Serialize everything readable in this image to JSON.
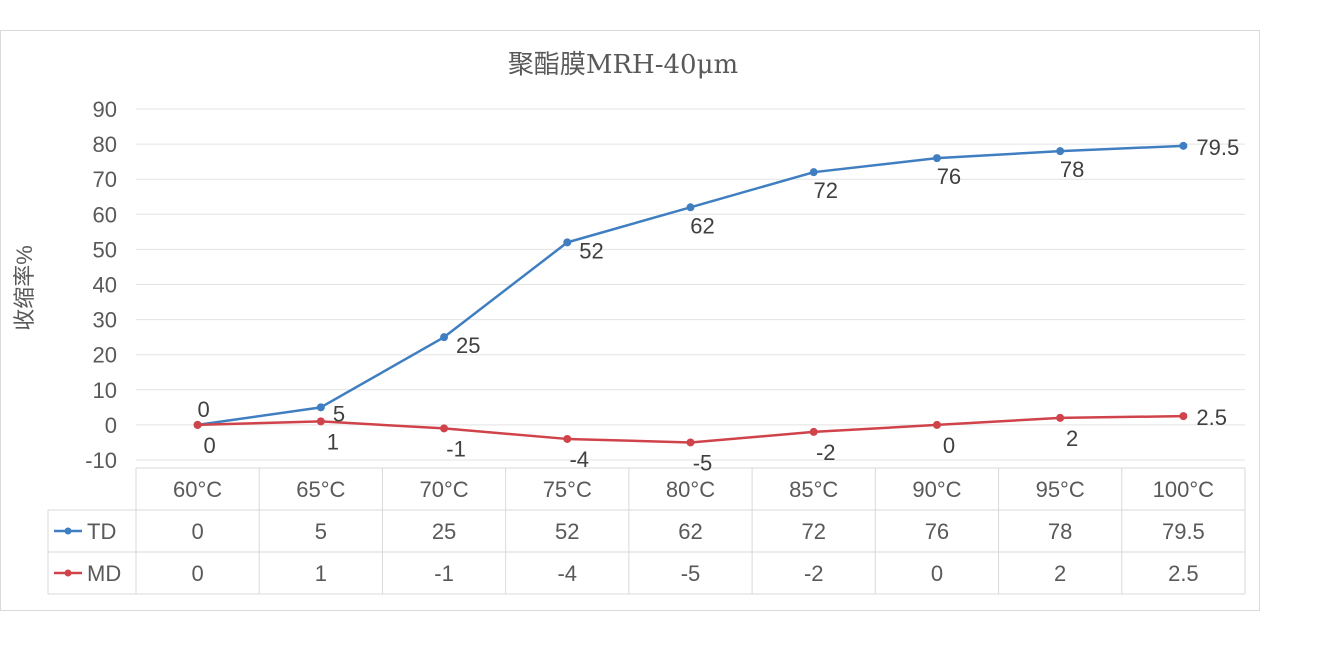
{
  "chart_data": {
    "type": "line",
    "title": "聚酯膜MRH-40μm",
    "ylabel": "收缩率%",
    "xlabel": "",
    "ylim": [
      -10,
      90
    ],
    "yticks": [
      -10,
      0,
      10,
      20,
      30,
      40,
      50,
      60,
      70,
      80,
      90
    ],
    "grid": true,
    "legend": "data-table-left",
    "categories": [
      "60°C",
      "65°C",
      "70°C",
      "75°C",
      "80°C",
      "85°C",
      "90°C",
      "95°C",
      "100°C"
    ],
    "series": [
      {
        "name": "TD",
        "color": "#3f7fc1",
        "values": [
          0,
          5,
          25,
          52,
          62,
          72,
          76,
          78,
          79.5
        ],
        "label_pos": "right"
      },
      {
        "name": "MD",
        "color": "#d0434b",
        "values": [
          0,
          1,
          -1,
          -4,
          -5,
          -2,
          0,
          2,
          2.5
        ],
        "label_pos": "below"
      }
    ]
  }
}
